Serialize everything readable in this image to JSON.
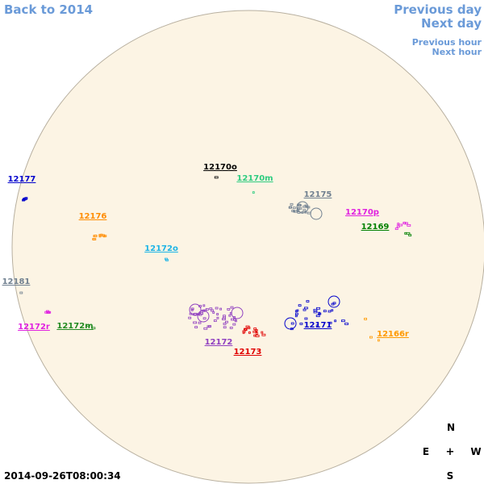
{
  "nav": {
    "back": "Back to 2014",
    "previous_day": "Previous day",
    "next_day": "Next day",
    "previous_hour": "Previous hour",
    "next_hour": "Next hour"
  },
  "regions": [
    {
      "label": "12177",
      "color": "#0000cc"
    },
    {
      "label": "12176",
      "color": "#ff8c00"
    },
    {
      "label": "12170o",
      "color": "#000000"
    },
    {
      "label": "12170m",
      "color": "#2ecc80"
    },
    {
      "label": "12175",
      "color": "#708090"
    },
    {
      "label": "12170p",
      "color": "#e020e0"
    },
    {
      "label": "12169",
      "color": "#008000"
    },
    {
      "label": "12172o",
      "color": "#1eb4e6"
    },
    {
      "label": "12181",
      "color": "#708090"
    },
    {
      "label": "12172r",
      "color": "#e020e0"
    },
    {
      "label": "12172m",
      "color": "#228b22"
    },
    {
      "label": "12172",
      "color": "#9040c0"
    },
    {
      "label": "12173",
      "color": "#e00000"
    },
    {
      "label": "12171",
      "color": "#0000cc"
    },
    {
      "label": "12166r",
      "color": "#ff9900"
    }
  ],
  "compass": {
    "north": "N",
    "east": "E",
    "center": "+",
    "west": "W",
    "south": "S"
  },
  "timestamp": "2014-09-26T08:00:34"
}
